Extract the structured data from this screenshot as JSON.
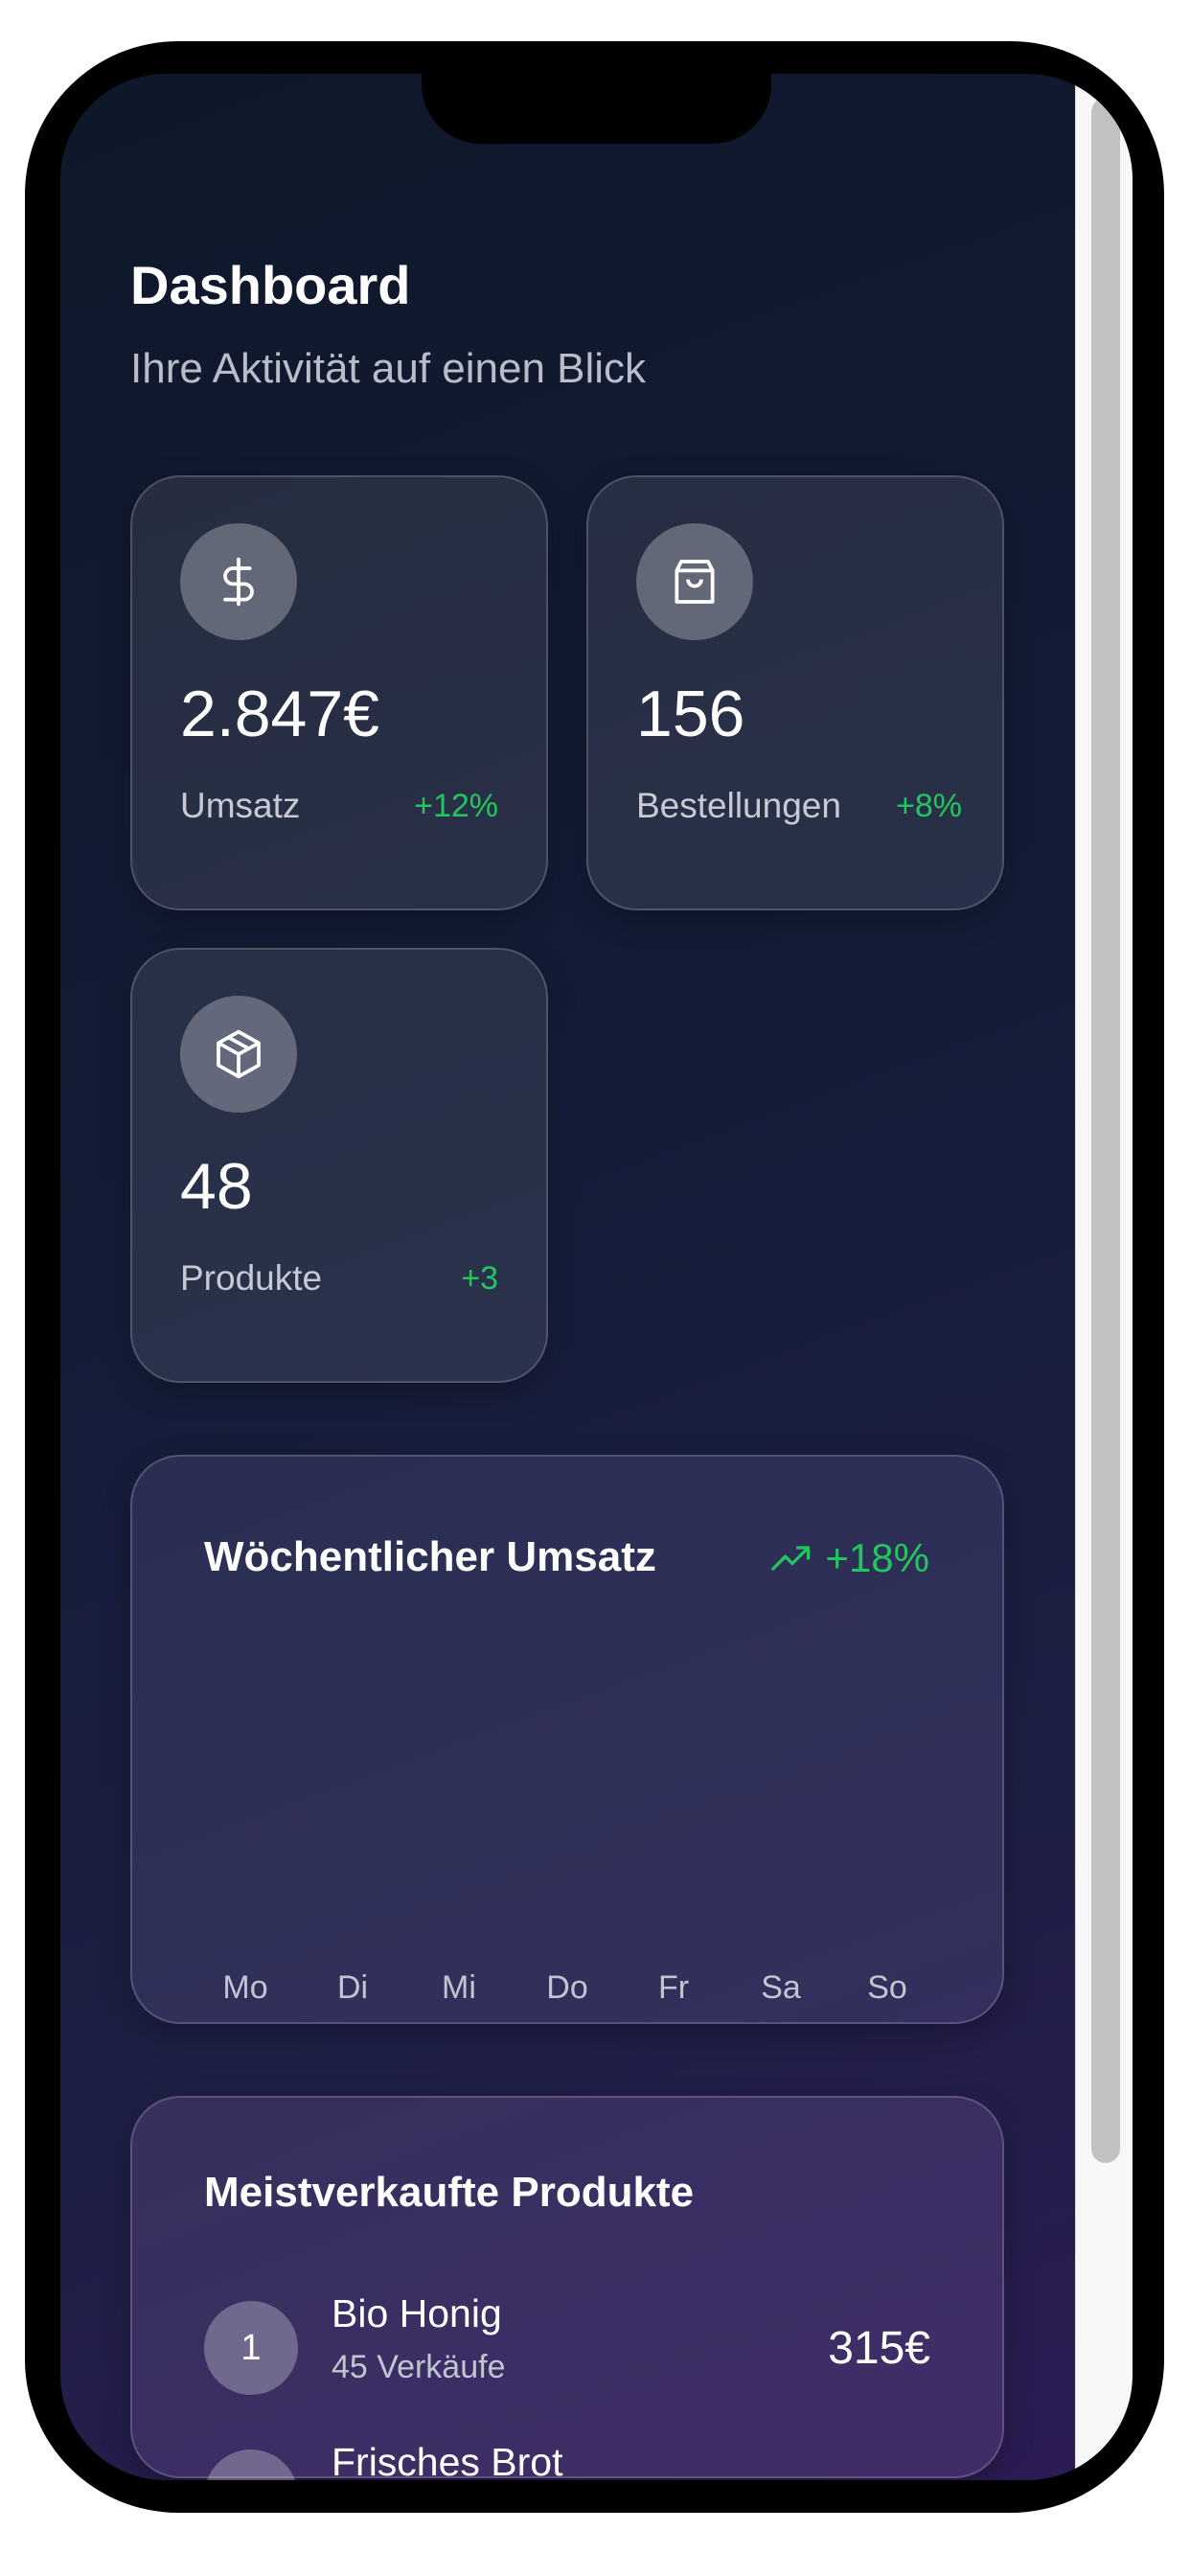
{
  "header": {
    "title": "Dashboard",
    "subtitle": "Ihre Aktivität auf einen Blick"
  },
  "stats": [
    {
      "icon": "dollar-icon",
      "value": "2.847€",
      "label": "Umsatz",
      "change": "+12%"
    },
    {
      "icon": "shopping-bag-icon",
      "value": "156",
      "label": "Bestellungen",
      "change": "+8%"
    },
    {
      "icon": "package-icon",
      "value": "48",
      "label": "Produkte",
      "change": "+3"
    }
  ],
  "weekly_chart": {
    "title": "Wöchentlicher Umsatz",
    "trend_icon": "trending-up-icon",
    "change": "+18%",
    "days": [
      "Mo",
      "Di",
      "Mi",
      "Do",
      "Fr",
      "Sa",
      "So"
    ]
  },
  "top_products": {
    "title": "Meistverkaufte Produkte",
    "items": [
      {
        "rank": "1",
        "name": "Bio Honig",
        "sales": "45 Verkäufe",
        "revenue": "315€"
      },
      {
        "name": "Frisches Brot"
      }
    ]
  },
  "colors": {
    "accent_positive": "#22c55e",
    "background_start": "#0f172a",
    "background_end": "#2d1b55"
  }
}
